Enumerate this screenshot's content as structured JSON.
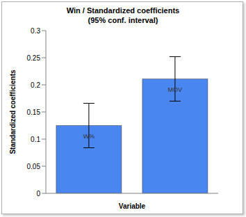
{
  "chart_data": {
    "type": "bar",
    "title": "Win / Standardized coefficients",
    "subtitle": "(95% conf. interval)",
    "x_label": "Variable",
    "y_label": "Standardized coefficients",
    "categories": [
      "W%",
      "MOV"
    ],
    "values": [
      0.125,
      0.211
    ],
    "errors": [
      0.041,
      0.041
    ],
    "color": "#4a86f0",
    "ylim": [
      0,
      0.3
    ],
    "yticks": [
      0,
      0.05,
      0.1,
      0.15,
      0.2,
      0.25,
      0.3
    ],
    "grid": false,
    "data_labels": false,
    "tick_labels": "y"
  }
}
